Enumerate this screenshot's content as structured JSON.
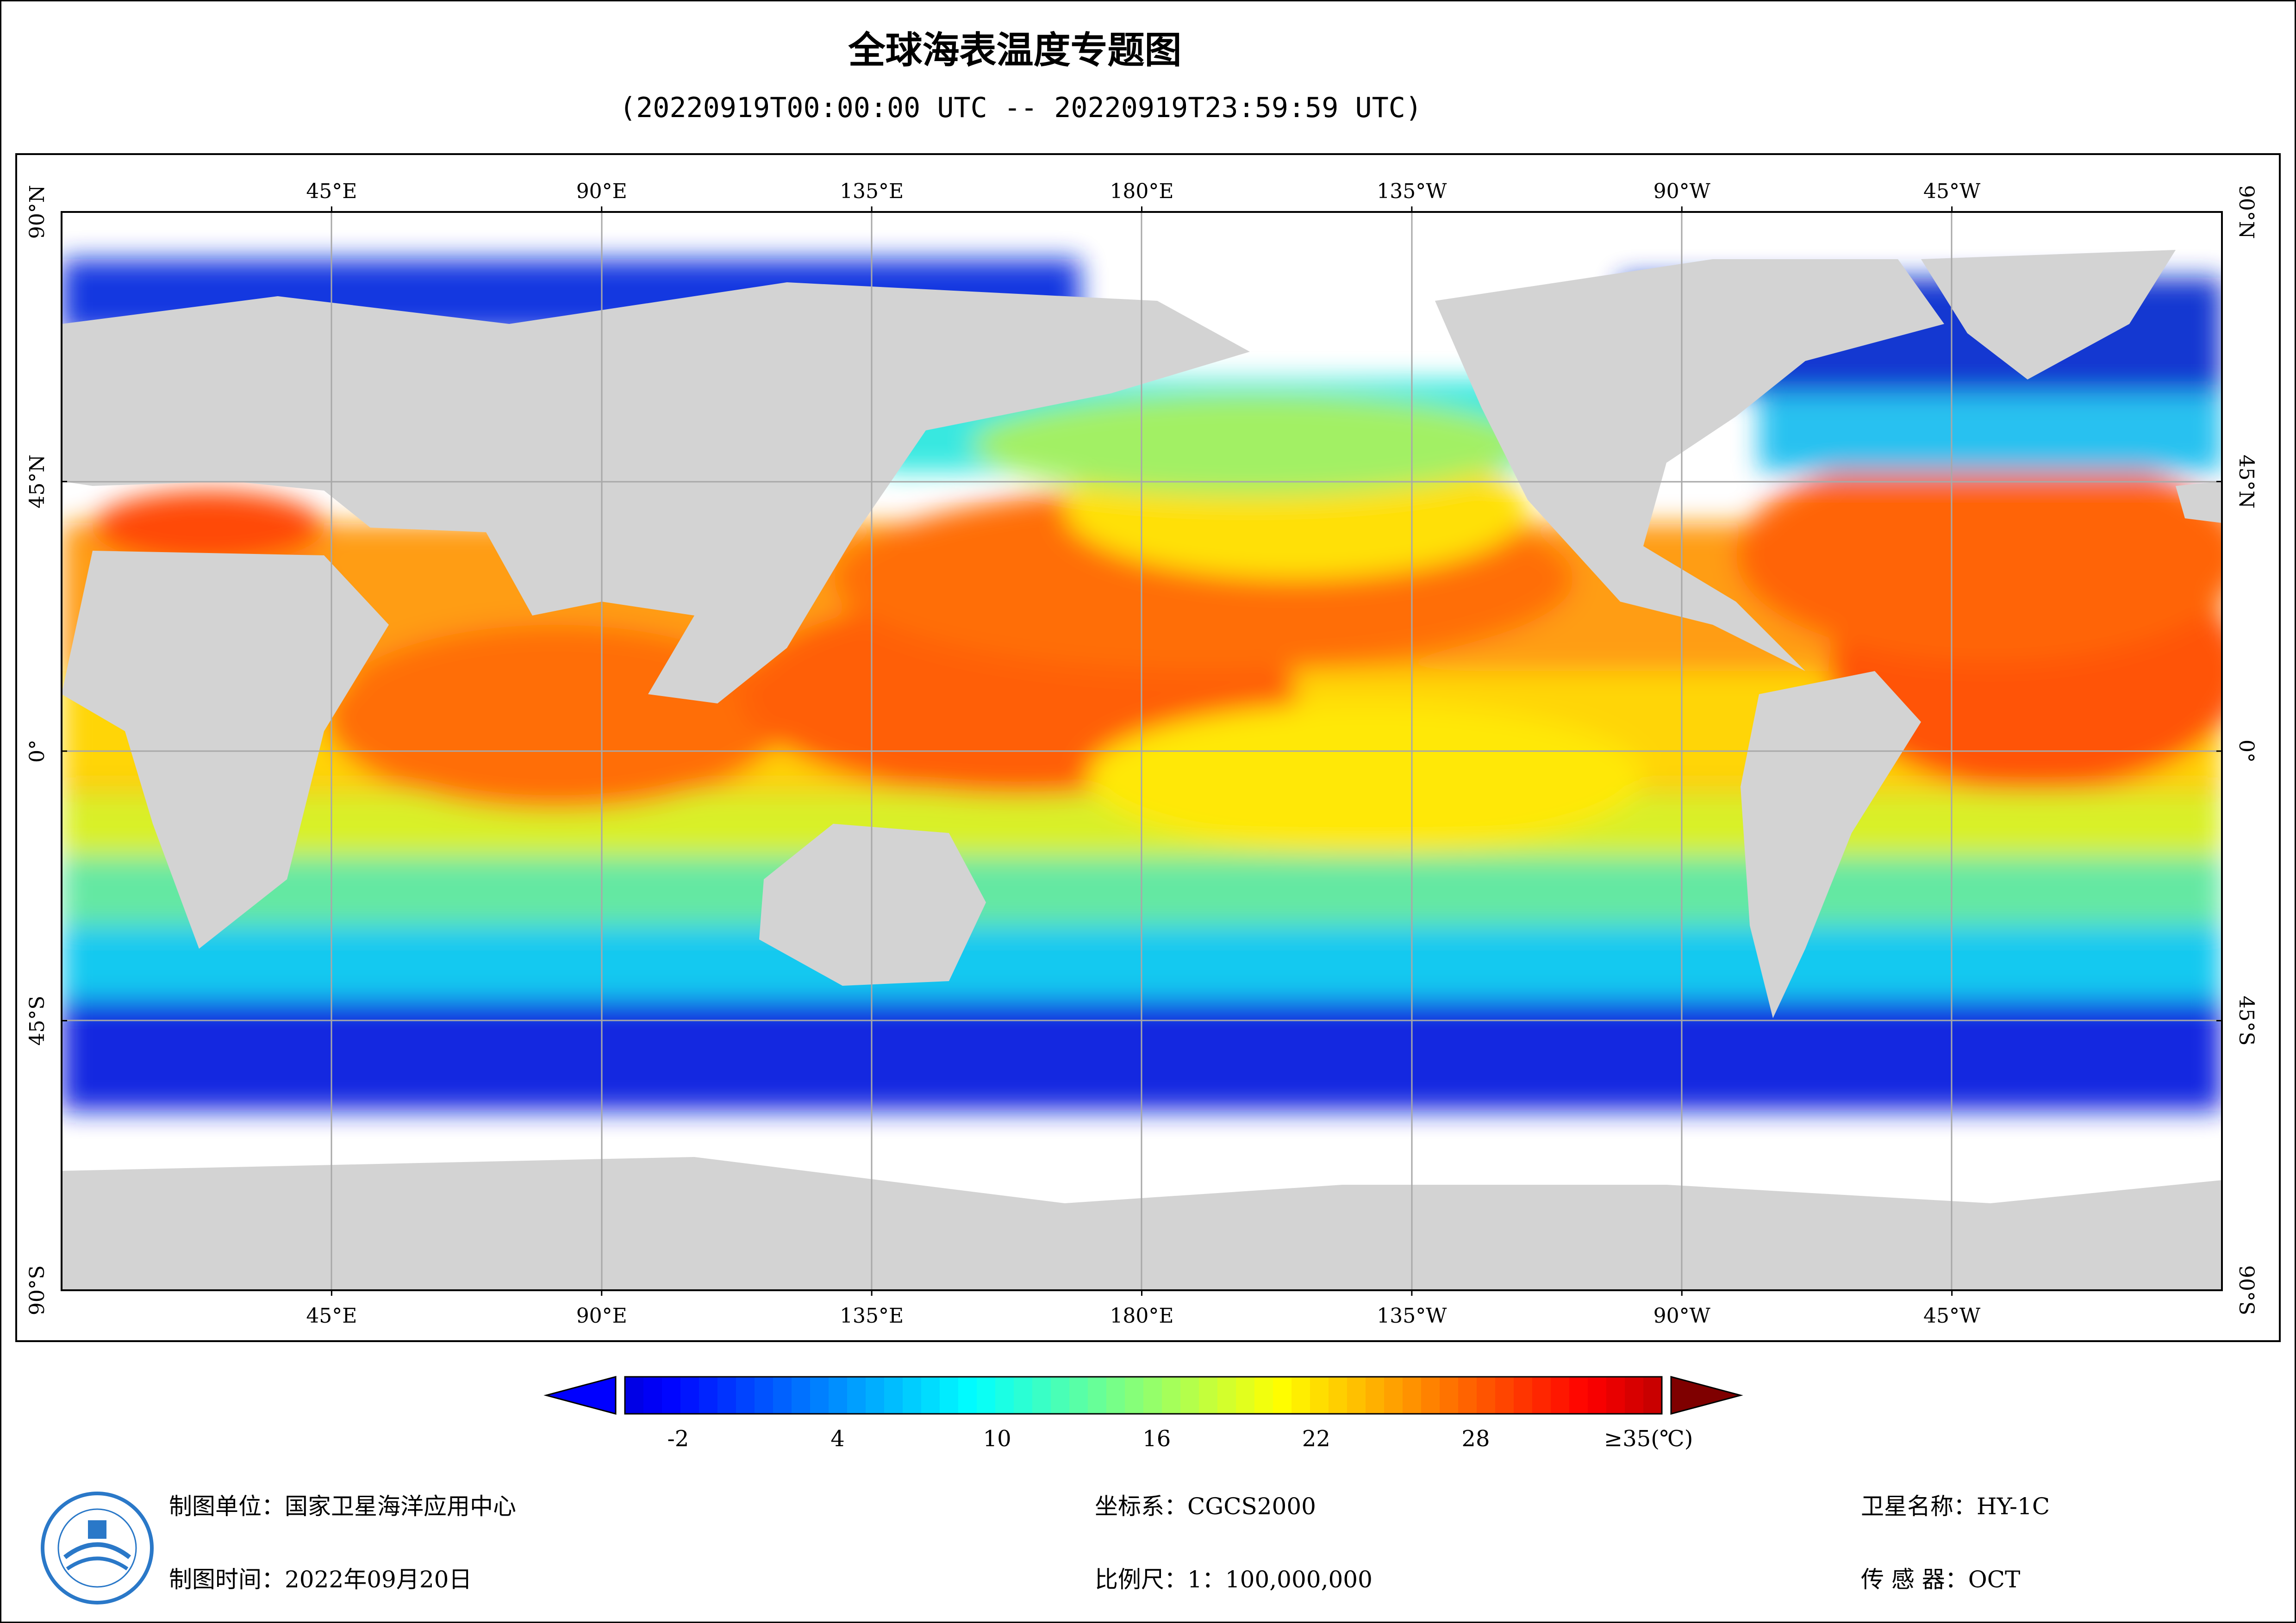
{
  "title": "全球海表温度专题图",
  "subtitle": "(20220919T00:00:00 UTC -- 20220919T23:59:59 UTC)",
  "axes": {
    "lon_labels": [
      {
        "lon": 45,
        "text": "45°E"
      },
      {
        "lon": 90,
        "text": "90°E"
      },
      {
        "lon": 135,
        "text": "135°E"
      },
      {
        "lon": 180,
        "text": "180°E"
      },
      {
        "lon": 225,
        "text": "135°W"
      },
      {
        "lon": 270,
        "text": "90°W"
      },
      {
        "lon": 315,
        "text": "45°W"
      }
    ],
    "lat_labels": [
      {
        "lat": 90,
        "text": "90°N"
      },
      {
        "lat": 45,
        "text": "45°N"
      },
      {
        "lat": 0,
        "text": "0°"
      },
      {
        "lat": -45,
        "text": "45°S"
      },
      {
        "lat": -90,
        "text": "90°S"
      }
    ]
  },
  "colorbar": {
    "min": -4,
    "max": 35,
    "ticks": [
      {
        "value": -2,
        "text": "-2"
      },
      {
        "value": 4,
        "text": "4"
      },
      {
        "value": 10,
        "text": "10"
      },
      {
        "value": 16,
        "text": "16"
      },
      {
        "value": 22,
        "text": "22"
      },
      {
        "value": 28,
        "text": "28"
      },
      {
        "value": 35,
        "text": "≥35(℃)"
      }
    ],
    "low_color": "#0000ff",
    "high_color": "#7f0000"
  },
  "footer": {
    "unit": "制图单位：国家卫星海洋应用中心",
    "time": "制图时间：2022年09月20日",
    "crs": "坐标系：CGCS2000",
    "scale": "比例尺：1：100,000,000",
    "satellite": "卫星名称：HY-1C",
    "sensor": "传  感  器：OCT"
  },
  "colors": {
    "land": "#d3d3d3",
    "nodata": "#ffffff",
    "grid": "#a8a8a8"
  }
}
